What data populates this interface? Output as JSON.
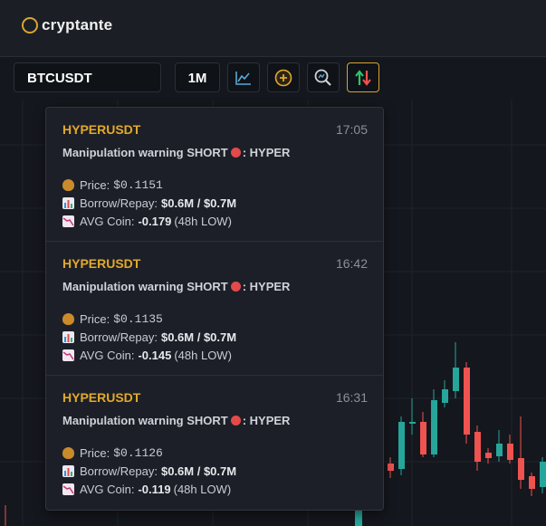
{
  "app": {
    "brand": "cryptante"
  },
  "toolbar": {
    "symbol": "BTCUSDT",
    "timeframe": "1M",
    "icons": [
      "line-chart-icon",
      "add-circle-icon",
      "zoom-search-icon",
      "updown-arrows-icon"
    ]
  },
  "alerts": [
    {
      "symbol": "HYPERUSDT",
      "time": "17:05",
      "title_prefix": "Manipulation warning SHORT",
      "title_suffix": ": HYPER",
      "price_label": "Price:",
      "price": "$0.1151",
      "borrow_label": "Borrow/Repay:",
      "borrow": "$0.6M / $0.7M",
      "avg_label": "AVG Coin:",
      "avg": "-0.179",
      "avg_note": "(48h LOW)"
    },
    {
      "symbol": "HYPERUSDT",
      "time": "16:42",
      "title_prefix": "Manipulation warning SHORT",
      "title_suffix": ": HYPER",
      "price_label": "Price:",
      "price": "$0.1135",
      "borrow_label": "Borrow/Repay:",
      "borrow": "$0.6M / $0.7M",
      "avg_label": "AVG Coin:",
      "avg": "-0.145",
      "avg_note": "(48h LOW)"
    },
    {
      "symbol": "HYPERUSDT",
      "time": "16:31",
      "title_prefix": "Manipulation warning SHORT",
      "title_suffix": ": HYPER",
      "price_label": "Price:",
      "price": "$0.1126",
      "borrow_label": "Borrow/Repay:",
      "borrow": "$0.6M / $0.7M",
      "avg_label": "AVG Coin:",
      "avg": "-0.119",
      "avg_note": "(48h LOW)"
    }
  ],
  "colors": {
    "up": "#26a69a",
    "down": "#ef5350",
    "accent": "#e3a92a"
  }
}
